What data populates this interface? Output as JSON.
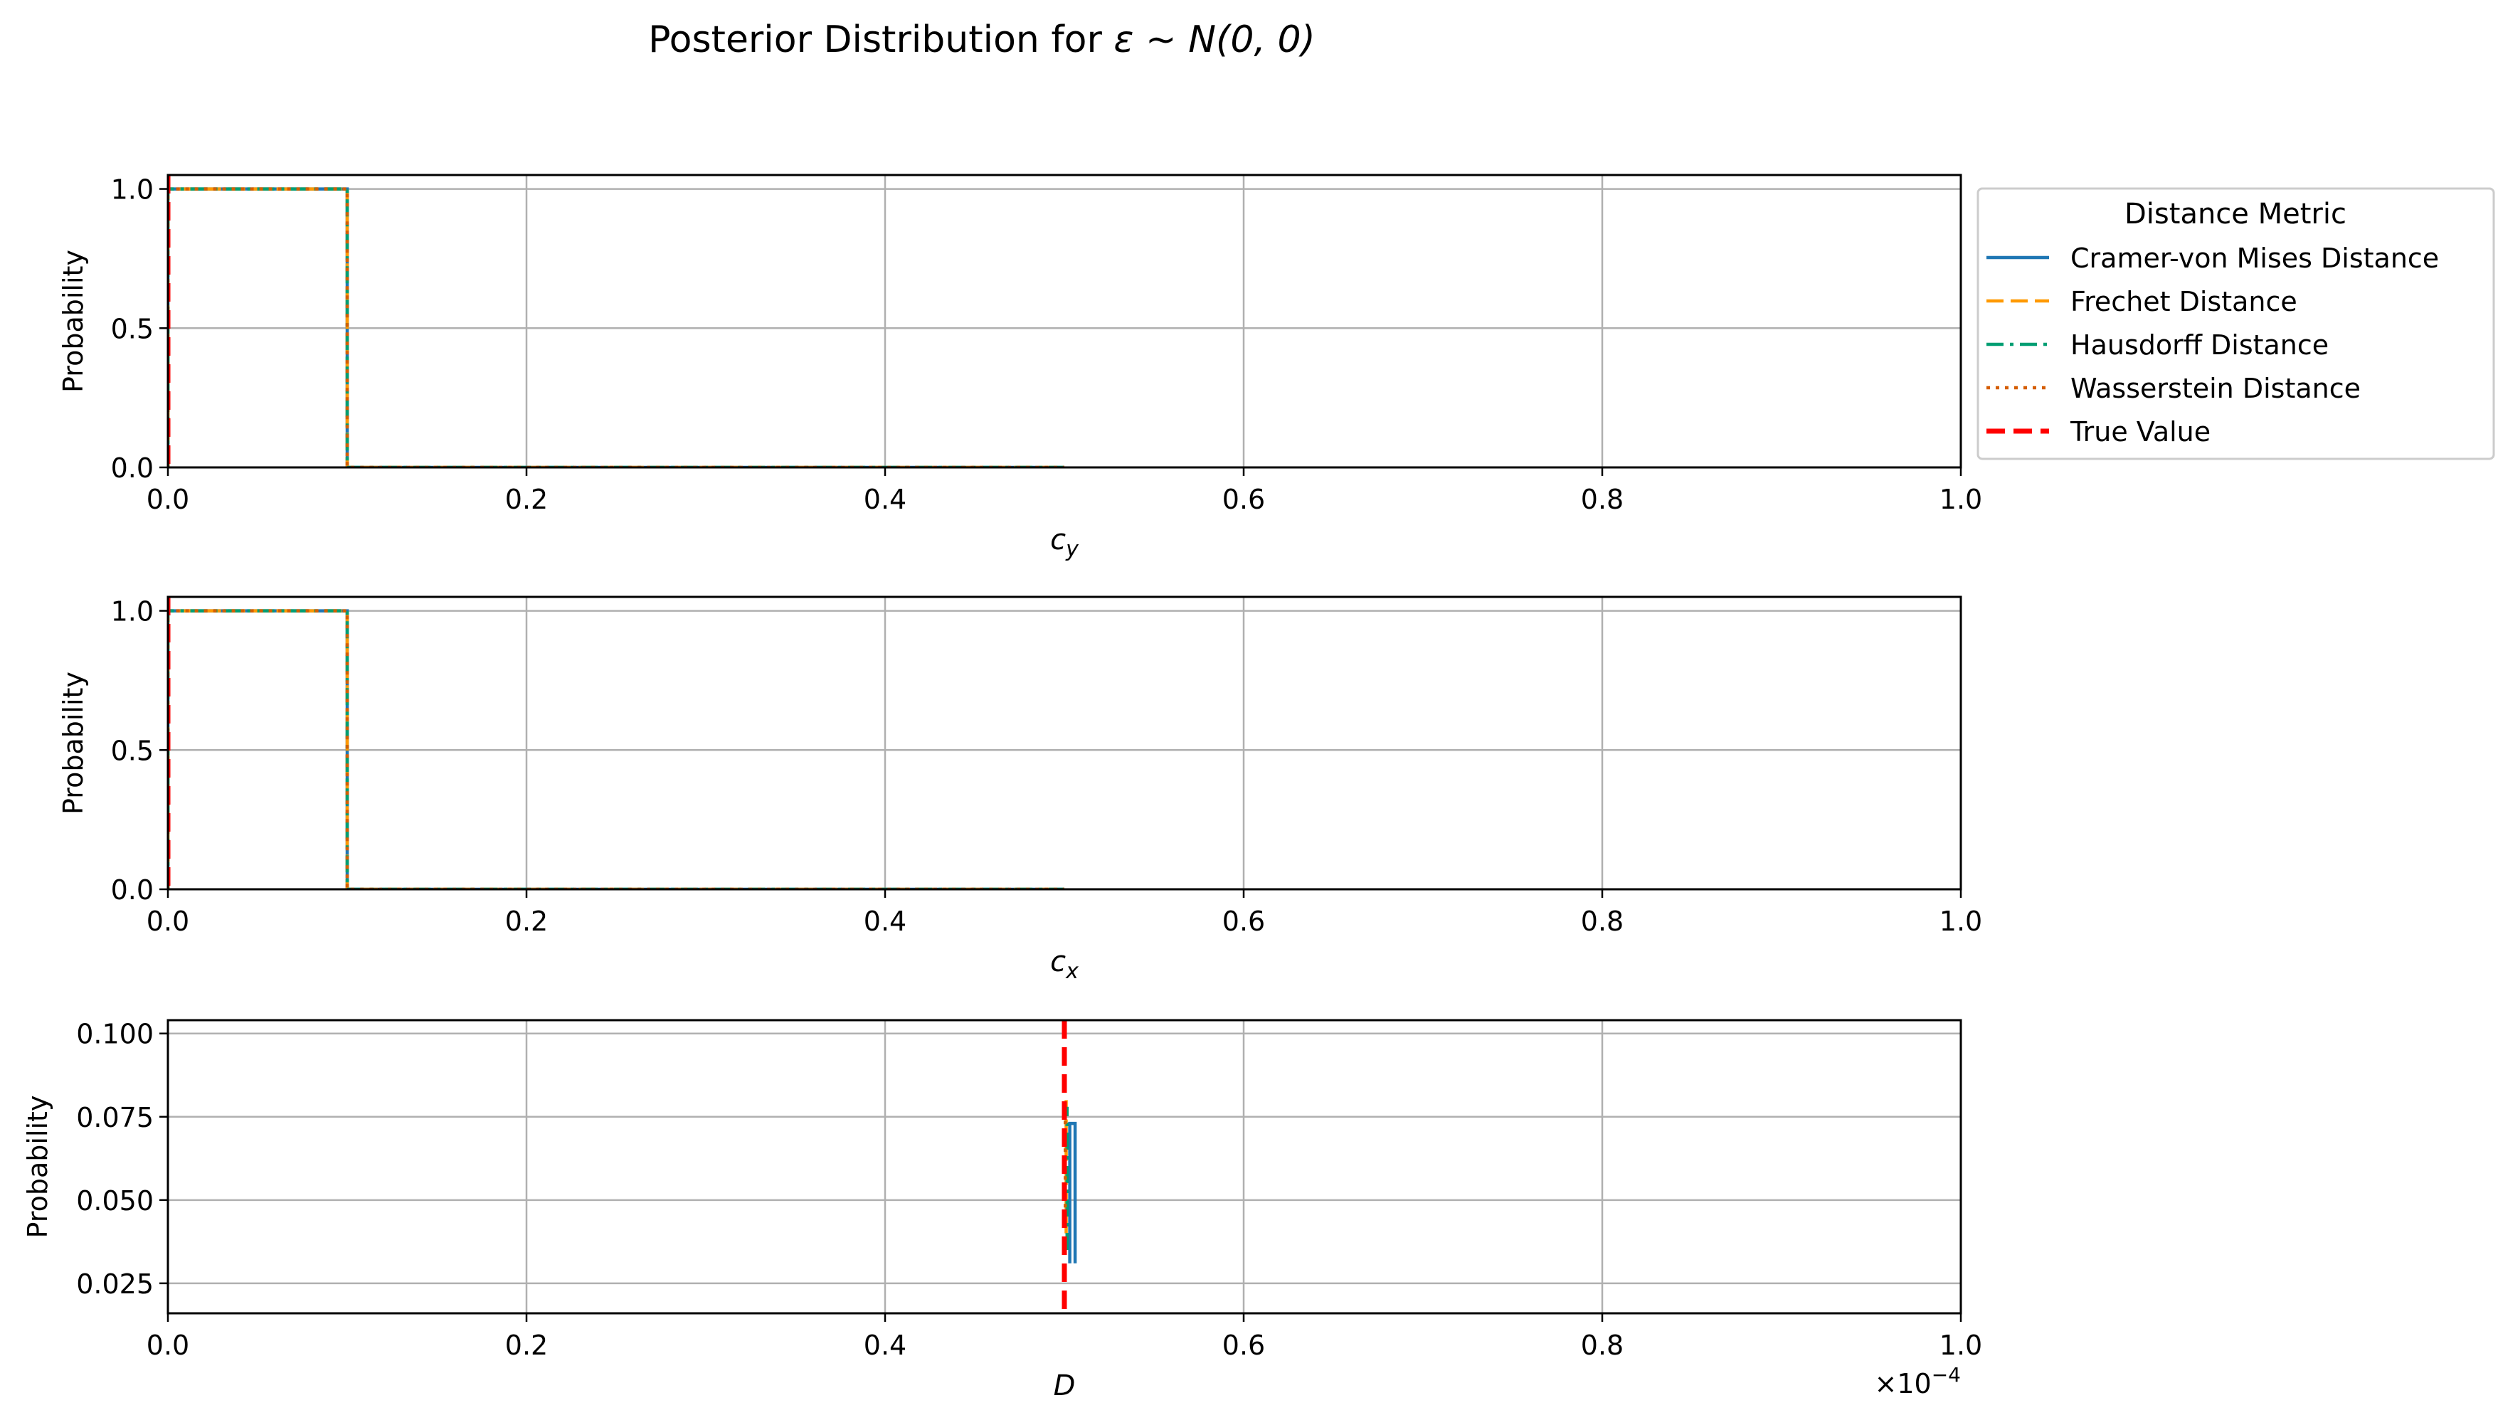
{
  "figure": {
    "title_text": "Posterior Distribution for ",
    "title_math": "ε ~ N(0, 0)"
  },
  "legend": {
    "title": "Distance Metric",
    "entries": [
      {
        "label": "Cramer-von Mises Distance",
        "color": "#1f77b4",
        "dash": "solid"
      },
      {
        "label": "Frechet Distance",
        "color": "#ff9900",
        "dash": "dashed"
      },
      {
        "label": "Hausdorff Distance",
        "color": "#009e73",
        "dash": "dashdot"
      },
      {
        "label": "Wasserstein Distance",
        "color": "#d55e00",
        "dash": "dotted"
      },
      {
        "label": "True Value",
        "color": "#ff0000",
        "dash": "dashed-thick"
      }
    ]
  },
  "chart_data": [
    {
      "type": "line",
      "subtype": "step-histogram",
      "xlabel_base": "c",
      "xlabel_sub": "y",
      "ylabel": "Probability",
      "xlim": [
        0,
        1
      ],
      "ylim": [
        0,
        1.05
      ],
      "xticks": [
        "0.0",
        "0.2",
        "0.4",
        "0.6",
        "0.8",
        "1.0"
      ],
      "yticks": [
        {
          "v": 0.0,
          "label": "0.0"
        },
        {
          "v": 0.5,
          "label": "0.5"
        },
        {
          "v": 1.0,
          "label": "1.0"
        }
      ],
      "grid": true,
      "series": [
        {
          "name": "Cramer-von Mises Distance",
          "x": [
            0,
            0,
            0.1,
            0.1,
            0.5
          ],
          "y": [
            0,
            1,
            1,
            0,
            0
          ]
        },
        {
          "name": "Frechet Distance",
          "x": [
            0,
            0,
            0.1,
            0.1,
            0.5
          ],
          "y": [
            0,
            1,
            1,
            0,
            0
          ]
        },
        {
          "name": "Hausdorff Distance",
          "x": [
            0,
            0,
            0.1,
            0.1,
            0.5
          ],
          "y": [
            0,
            1,
            1,
            0,
            0
          ]
        },
        {
          "name": "Wasserstein Distance",
          "x": [
            0,
            0,
            0.1,
            0.1,
            0.5
          ],
          "y": [
            0,
            1,
            1,
            0,
            0
          ]
        }
      ],
      "true_value": 0.0
    },
    {
      "type": "line",
      "subtype": "step-histogram",
      "xlabel_base": "c",
      "xlabel_sub": "x",
      "ylabel": "Probability",
      "xlim": [
        0,
        1
      ],
      "ylim": [
        0,
        1.05
      ],
      "xticks": [
        "0.0",
        "0.2",
        "0.4",
        "0.6",
        "0.8",
        "1.0"
      ],
      "yticks": [
        {
          "v": 0.0,
          "label": "0.0"
        },
        {
          "v": 0.5,
          "label": "0.5"
        },
        {
          "v": 1.0,
          "label": "1.0"
        }
      ],
      "grid": true,
      "series": [
        {
          "name": "Cramer-von Mises Distance",
          "x": [
            0,
            0,
            0.1,
            0.1,
            0.5
          ],
          "y": [
            0,
            1,
            1,
            0,
            0
          ]
        },
        {
          "name": "Frechet Distance",
          "x": [
            0,
            0,
            0.1,
            0.1,
            0.5
          ],
          "y": [
            0,
            1,
            1,
            0,
            0
          ]
        },
        {
          "name": "Hausdorff Distance",
          "x": [
            0,
            0,
            0.1,
            0.1,
            0.5
          ],
          "y": [
            0,
            1,
            1,
            0,
            0
          ]
        },
        {
          "name": "Wasserstein Distance",
          "x": [
            0,
            0,
            0.1,
            0.1,
            0.5
          ],
          "y": [
            0,
            1,
            1,
            0,
            0
          ]
        }
      ],
      "true_value": 0.0
    },
    {
      "type": "line",
      "subtype": "step-histogram",
      "xlabel_base": "D",
      "xlabel_sub": "",
      "ylabel": "Probability",
      "xlim": [
        0,
        1
      ],
      "ylim": [
        0.016,
        0.104
      ],
      "x_scale_text": "×10",
      "x_scale_exp": "−4",
      "xticks": [
        "0.0",
        "0.2",
        "0.4",
        "0.6",
        "0.8",
        "1.0"
      ],
      "yticks": [
        {
          "v": 0.025,
          "label": "0.025"
        },
        {
          "v": 0.05,
          "label": "0.050"
        },
        {
          "v": 0.075,
          "label": "0.075"
        },
        {
          "v": 0.1,
          "label": "0.100"
        }
      ],
      "grid": true,
      "series": [
        {
          "name": "Cramer-von Mises Distance",
          "x": [
            0.503,
            0.503,
            0.506,
            0.506
          ],
          "y": [
            0.031,
            0.073,
            0.073,
            0.031
          ]
        },
        {
          "name": "Frechet Distance",
          "x": [
            0.501,
            0.501
          ],
          "y": [
            0.04,
            0.08
          ]
        },
        {
          "name": "Hausdorff Distance",
          "x": [
            0.5015,
            0.5015
          ],
          "y": [
            0.035,
            0.078
          ]
        },
        {
          "name": "Wasserstein Distance",
          "x": [
            0.5005,
            0.5005
          ],
          "y": [
            0.045,
            0.08
          ]
        }
      ],
      "true_value": 0.5
    }
  ]
}
